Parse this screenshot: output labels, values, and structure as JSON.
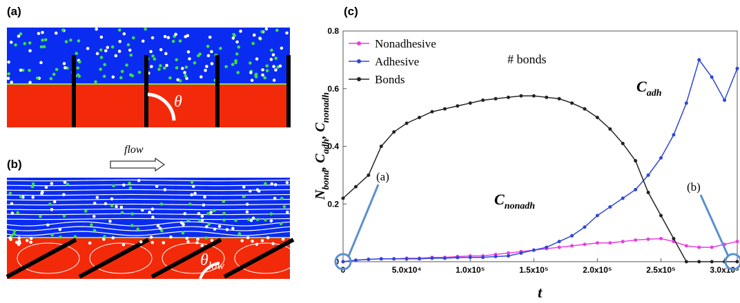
{
  "panels": {
    "a": {
      "label": "(a)",
      "angle": "θ"
    },
    "b": {
      "label": "(b)",
      "flow": "flow",
      "angle": {
        "base": "θ",
        "sub": "low"
      }
    },
    "c": {
      "label": "(c)"
    }
  },
  "chart_data": {
    "type": "line",
    "xlabel": "t",
    "ylabel": [
      {
        "text": "N"
      },
      {
        "sub": "bond"
      },
      {
        "text": ", C"
      },
      {
        "sub": "adh"
      },
      {
        "text": ", C"
      },
      {
        "sub": "nonadh"
      }
    ],
    "x": [
      0,
      10000,
      20000,
      30000,
      40000,
      50000,
      60000,
      70000,
      80000,
      90000,
      100000,
      110000,
      120000,
      130000,
      140000,
      150000,
      160000,
      170000,
      180000,
      190000,
      200000,
      210000,
      220000,
      230000,
      240000,
      250000,
      260000,
      270000,
      280000,
      290000,
      300000,
      310000
    ],
    "series": [
      {
        "name": "Nonadhesive",
        "color": "#e83ee0",
        "values": [
          0,
          0.005,
          0.008,
          0.01,
          0.01,
          0.012,
          0.012,
          0.015,
          0.015,
          0.018,
          0.02,
          0.02,
          0.025,
          0.03,
          0.035,
          0.04,
          0.045,
          0.05,
          0.055,
          0.06,
          0.065,
          0.065,
          0.07,
          0.075,
          0.078,
          0.08,
          0.07,
          0.055,
          0.05,
          0.05,
          0.06,
          0.07
        ]
      },
      {
        "name": "Adhesive",
        "color": "#2d46d8",
        "values": [
          0,
          0.005,
          0.008,
          0.01,
          0.01,
          0.01,
          0.01,
          0.012,
          0.012,
          0.014,
          0.015,
          0.015,
          0.018,
          0.02,
          0.03,
          0.04,
          0.05,
          0.07,
          0.09,
          0.12,
          0.16,
          0.19,
          0.22,
          0.25,
          0.3,
          0.36,
          0.44,
          0.55,
          0.7,
          0.64,
          0.56,
          0.67
        ]
      },
      {
        "name": "Bonds",
        "color": "#222222",
        "values": [
          0.22,
          0.26,
          0.3,
          0.4,
          0.45,
          0.48,
          0.5,
          0.52,
          0.53,
          0.54,
          0.55,
          0.56,
          0.565,
          0.57,
          0.575,
          0.575,
          0.57,
          0.565,
          0.55,
          0.53,
          0.5,
          0.46,
          0.41,
          0.35,
          0.24,
          0.16,
          0.08,
          0,
          0,
          0,
          0,
          0
        ]
      }
    ],
    "xlim": [
      0,
      310000
    ],
    "ylim": [
      0,
      0.8
    ],
    "xticks": [
      0,
      {
        "value": 50000,
        "label": "5.0x10⁴"
      },
      {
        "value": 100000,
        "label": "1.0x10⁵"
      },
      {
        "value": 150000,
        "label": "1.5x10⁵"
      },
      {
        "value": 200000,
        "label": "2.0x10⁵"
      },
      {
        "value": 250000,
        "label": "2.5x10⁵"
      },
      {
        "value": 300000,
        "label": "3.0x10⁵"
      }
    ],
    "yticks": [
      0,
      0.2,
      0.4,
      0.6,
      0.8
    ],
    "legend": "upper left",
    "annotations": {
      "bonds": "# bonds",
      "adh": {
        "base": "C",
        "sub": "adh"
      },
      "nonadh": {
        "base": "C",
        "sub": "nonadh"
      },
      "a": "(a)",
      "b": "(b)"
    }
  }
}
